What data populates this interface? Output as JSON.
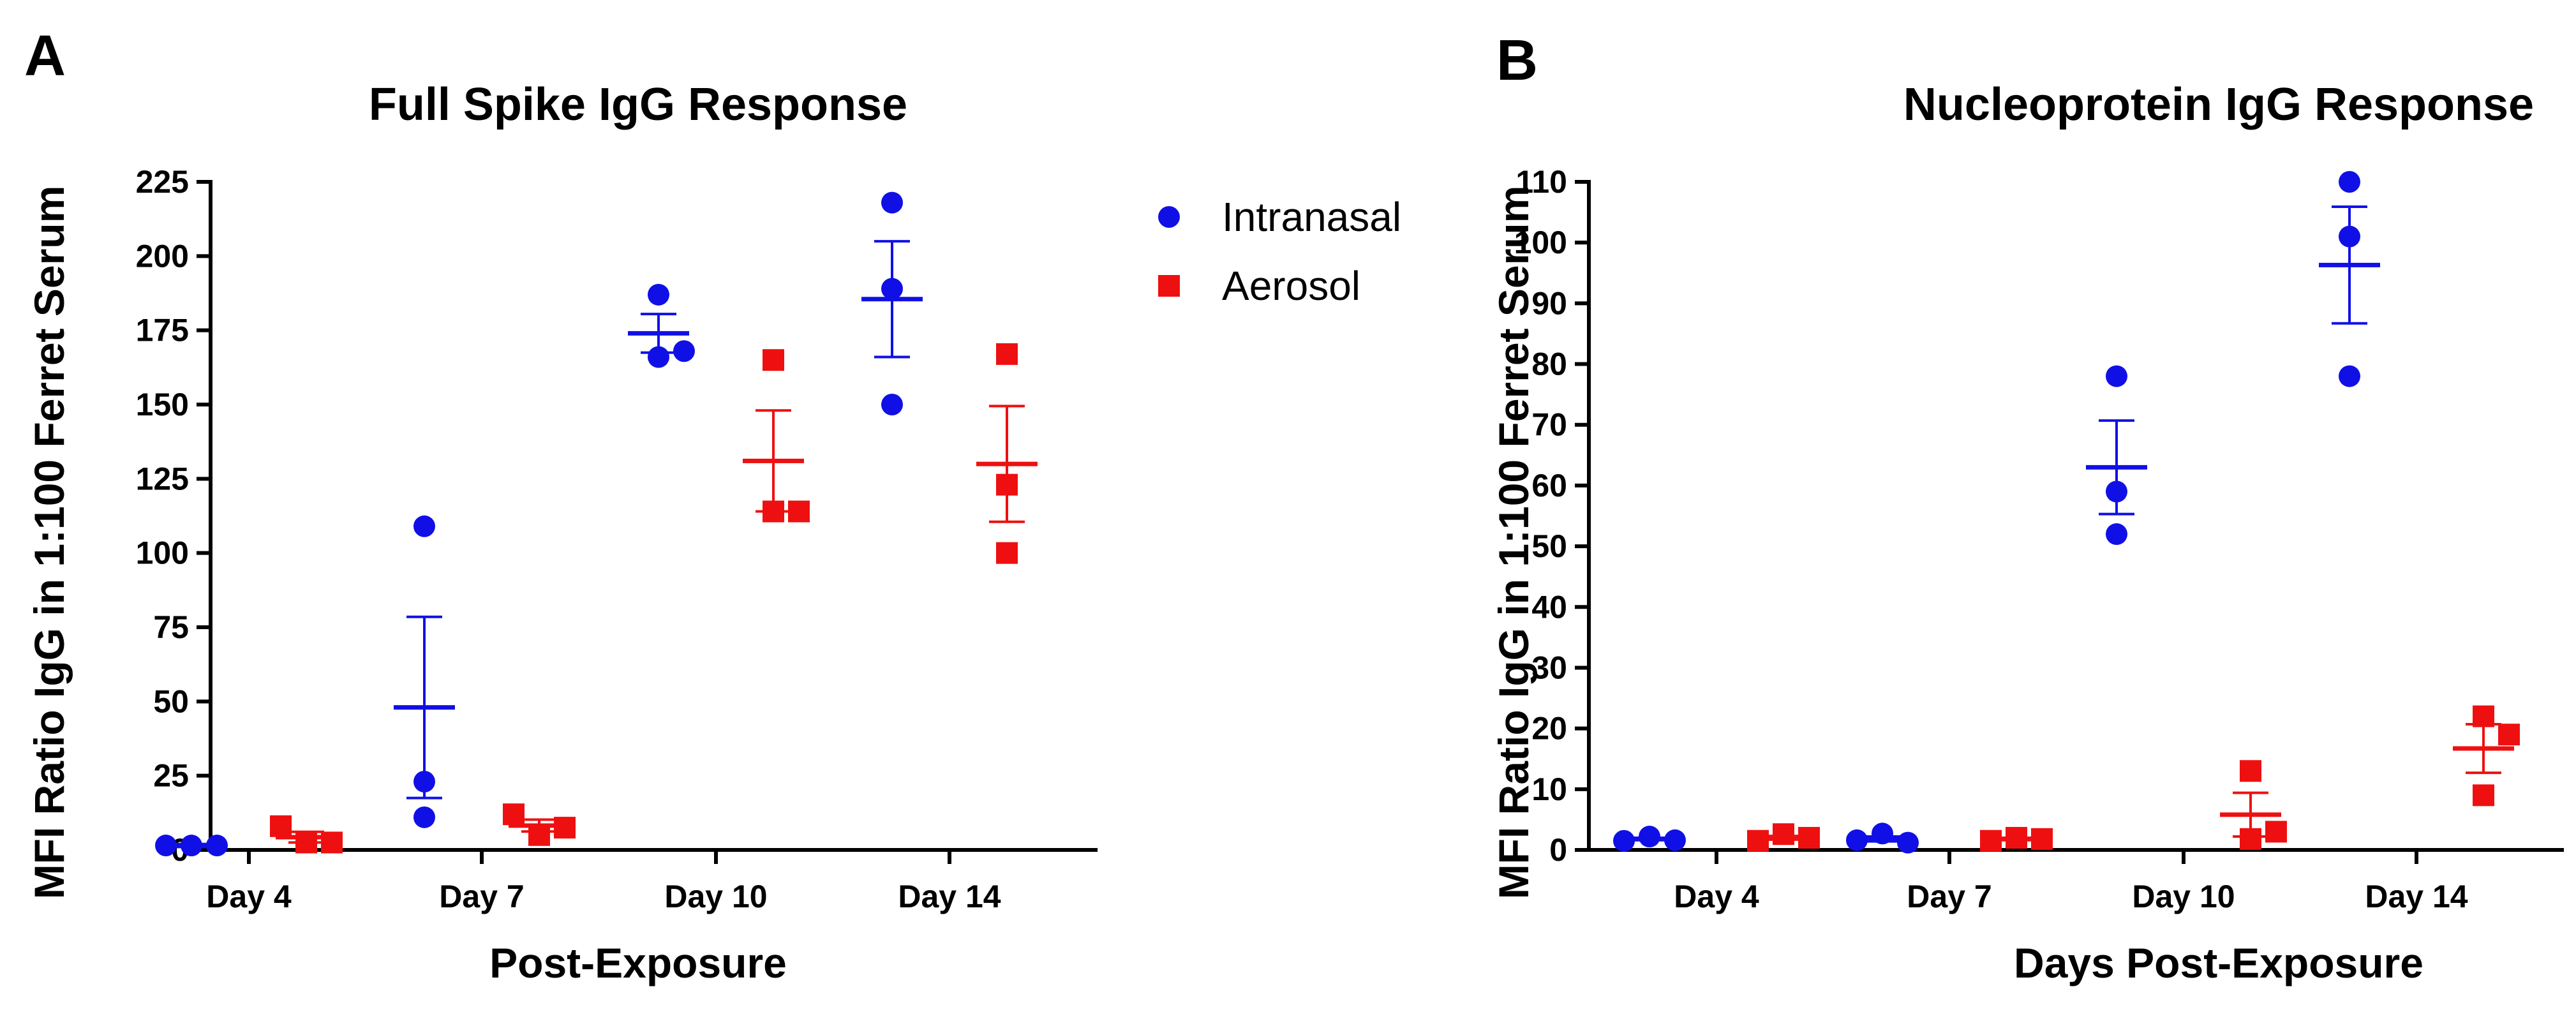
{
  "colors": {
    "intranasal": "#1010e6",
    "aerosol": "#ee1010",
    "axis": "#000000"
  },
  "legend": [
    {
      "name": "Intranasal",
      "marker": "circle",
      "color": "#1010e6"
    },
    {
      "name": "Aerosol",
      "marker": "square",
      "color": "#ee1010"
    }
  ],
  "chart_data": [
    {
      "type": "scatter",
      "panel_label": "A",
      "title": "Full Spike IgG Response",
      "xlabel": "Post-Exposure",
      "ylabel": "MFI Ratio IgG in 1:100 Ferret Serum",
      "categories": [
        "Day 4",
        "Day 7",
        "Day 10",
        "Day 14"
      ],
      "ylim": [
        0,
        225
      ],
      "yticks": [
        "0",
        "25",
        "50",
        "75",
        "100",
        "125",
        "150",
        "175",
        "200",
        "225"
      ],
      "ytick_values": [
        0,
        25,
        50,
        75,
        100,
        125,
        150,
        175,
        200,
        225
      ],
      "series": [
        {
          "name": "Intranasal",
          "points": [
            [
              1.5,
              1.5,
              1.5
            ],
            [
              109,
              23,
              11
            ],
            [
              187,
              166,
              168
            ],
            [
              218,
              189,
              150
            ]
          ],
          "mean": [
            1.5,
            48,
            174,
            185.5
          ],
          "sem": [
            0.5,
            30.5,
            6.5,
            19.5
          ]
        },
        {
          "name": "Aerosol",
          "points": [
            [
              8,
              2.5,
              2.5
            ],
            [
              12,
              5,
              7.5
            ],
            [
              165,
              114,
              114
            ],
            [
              167,
              123,
              100
            ]
          ],
          "mean": [
            4.3,
            8.2,
            131,
            130
          ],
          "sem": [
            1.8,
            2.0,
            17,
            19.5
          ]
        }
      ]
    },
    {
      "type": "scatter",
      "panel_label": "B",
      "title": "Nucleoprotein IgG Response",
      "xlabel": "Days Post-Exposure",
      "ylabel": "MFI Ratio IgG in 1:100 Ferret Serum",
      "categories": [
        "Day 4",
        "Day 7",
        "Day 10",
        "Day 14"
      ],
      "ylim": [
        0,
        110
      ],
      "yticks": [
        "0",
        "10",
        "20",
        "30",
        "40",
        "50",
        "60",
        "70",
        "80",
        "90",
        "100",
        "110"
      ],
      "ytick_values": [
        0,
        10,
        20,
        30,
        40,
        50,
        60,
        70,
        80,
        90,
        100,
        110
      ],
      "series": [
        {
          "name": "Intranasal",
          "points": [
            [
              1.5,
              2.2,
              1.6
            ],
            [
              1.6,
              2.7,
              1.2
            ],
            [
              78,
              59,
              52
            ],
            [
              110,
              101,
              78
            ]
          ],
          "mean": [
            1.8,
            1.8,
            63,
            96.3
          ],
          "sem": [
            0.2,
            0.4,
            7.7,
            9.6
          ]
        },
        {
          "name": "Aerosol",
          "points": [
            [
              1.5,
              2.6,
              2.0
            ],
            [
              1.5,
              2.0,
              1.8
            ],
            [
              13,
              1.8,
              3.0
            ],
            [
              22,
              19,
              9
            ]
          ],
          "mean": [
            2.0,
            1.8,
            5.8,
            16.7
          ],
          "sem": [
            0.3,
            0.2,
            3.6,
            4.0
          ]
        }
      ]
    }
  ]
}
